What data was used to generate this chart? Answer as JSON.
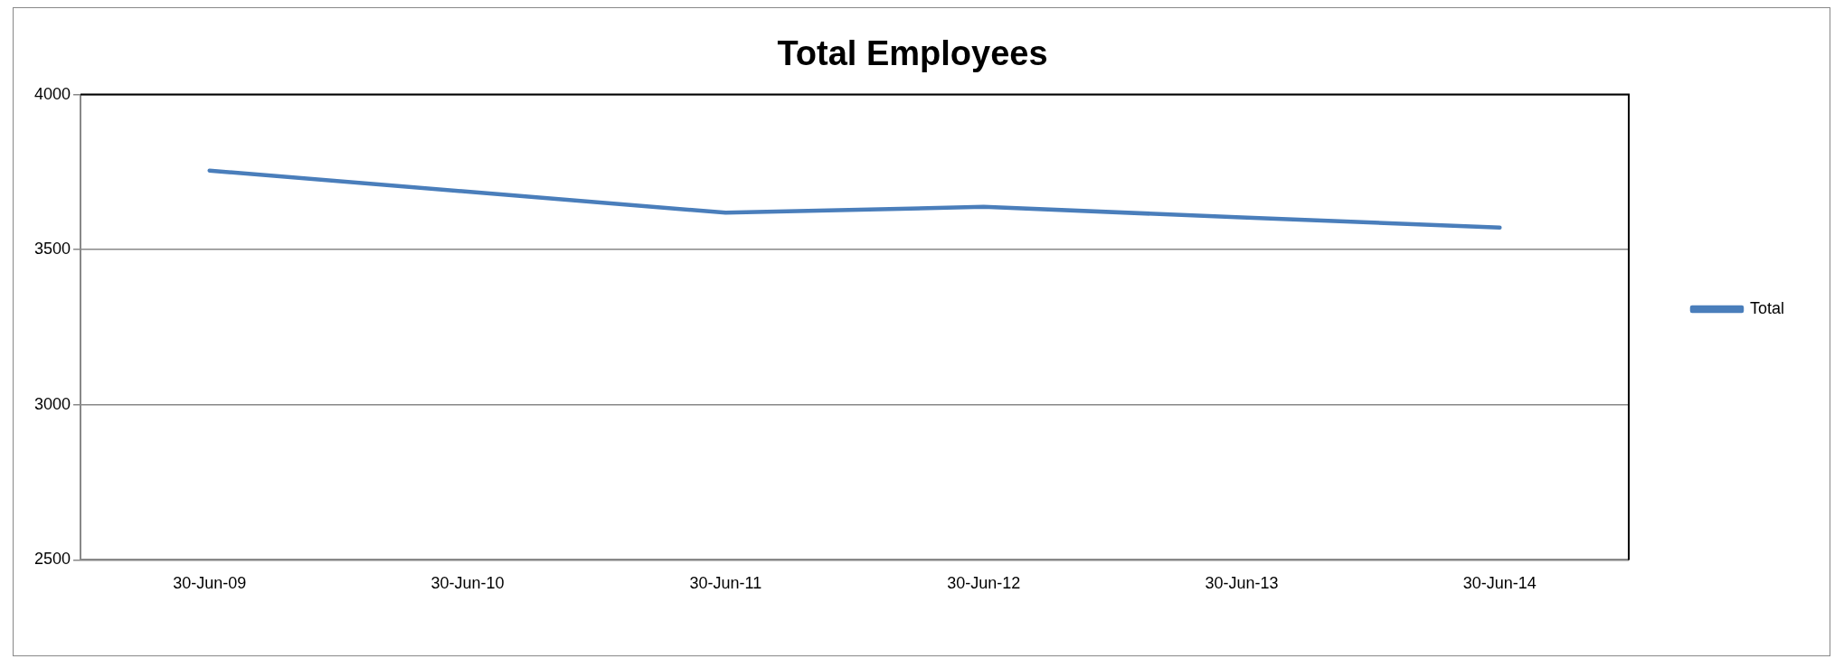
{
  "chart_data": {
    "type": "line",
    "title": "Total Employees",
    "categories": [
      "30-Jun-09",
      "30-Jun-10",
      "30-Jun-11",
      "30-Jun-12",
      "30-Jun-13",
      "30-Jun-14"
    ],
    "series": [
      {
        "name": "Total",
        "color": "#4a7ebb",
        "values": [
          3755,
          3687,
          3619,
          3638,
          3604,
          3571
        ]
      }
    ],
    "ylim": [
      2500,
      4000
    ],
    "yticks": [
      2500,
      3000,
      3500,
      4000
    ],
    "grid": "y",
    "legend": "right",
    "marker": "none",
    "line_style": "solid"
  }
}
